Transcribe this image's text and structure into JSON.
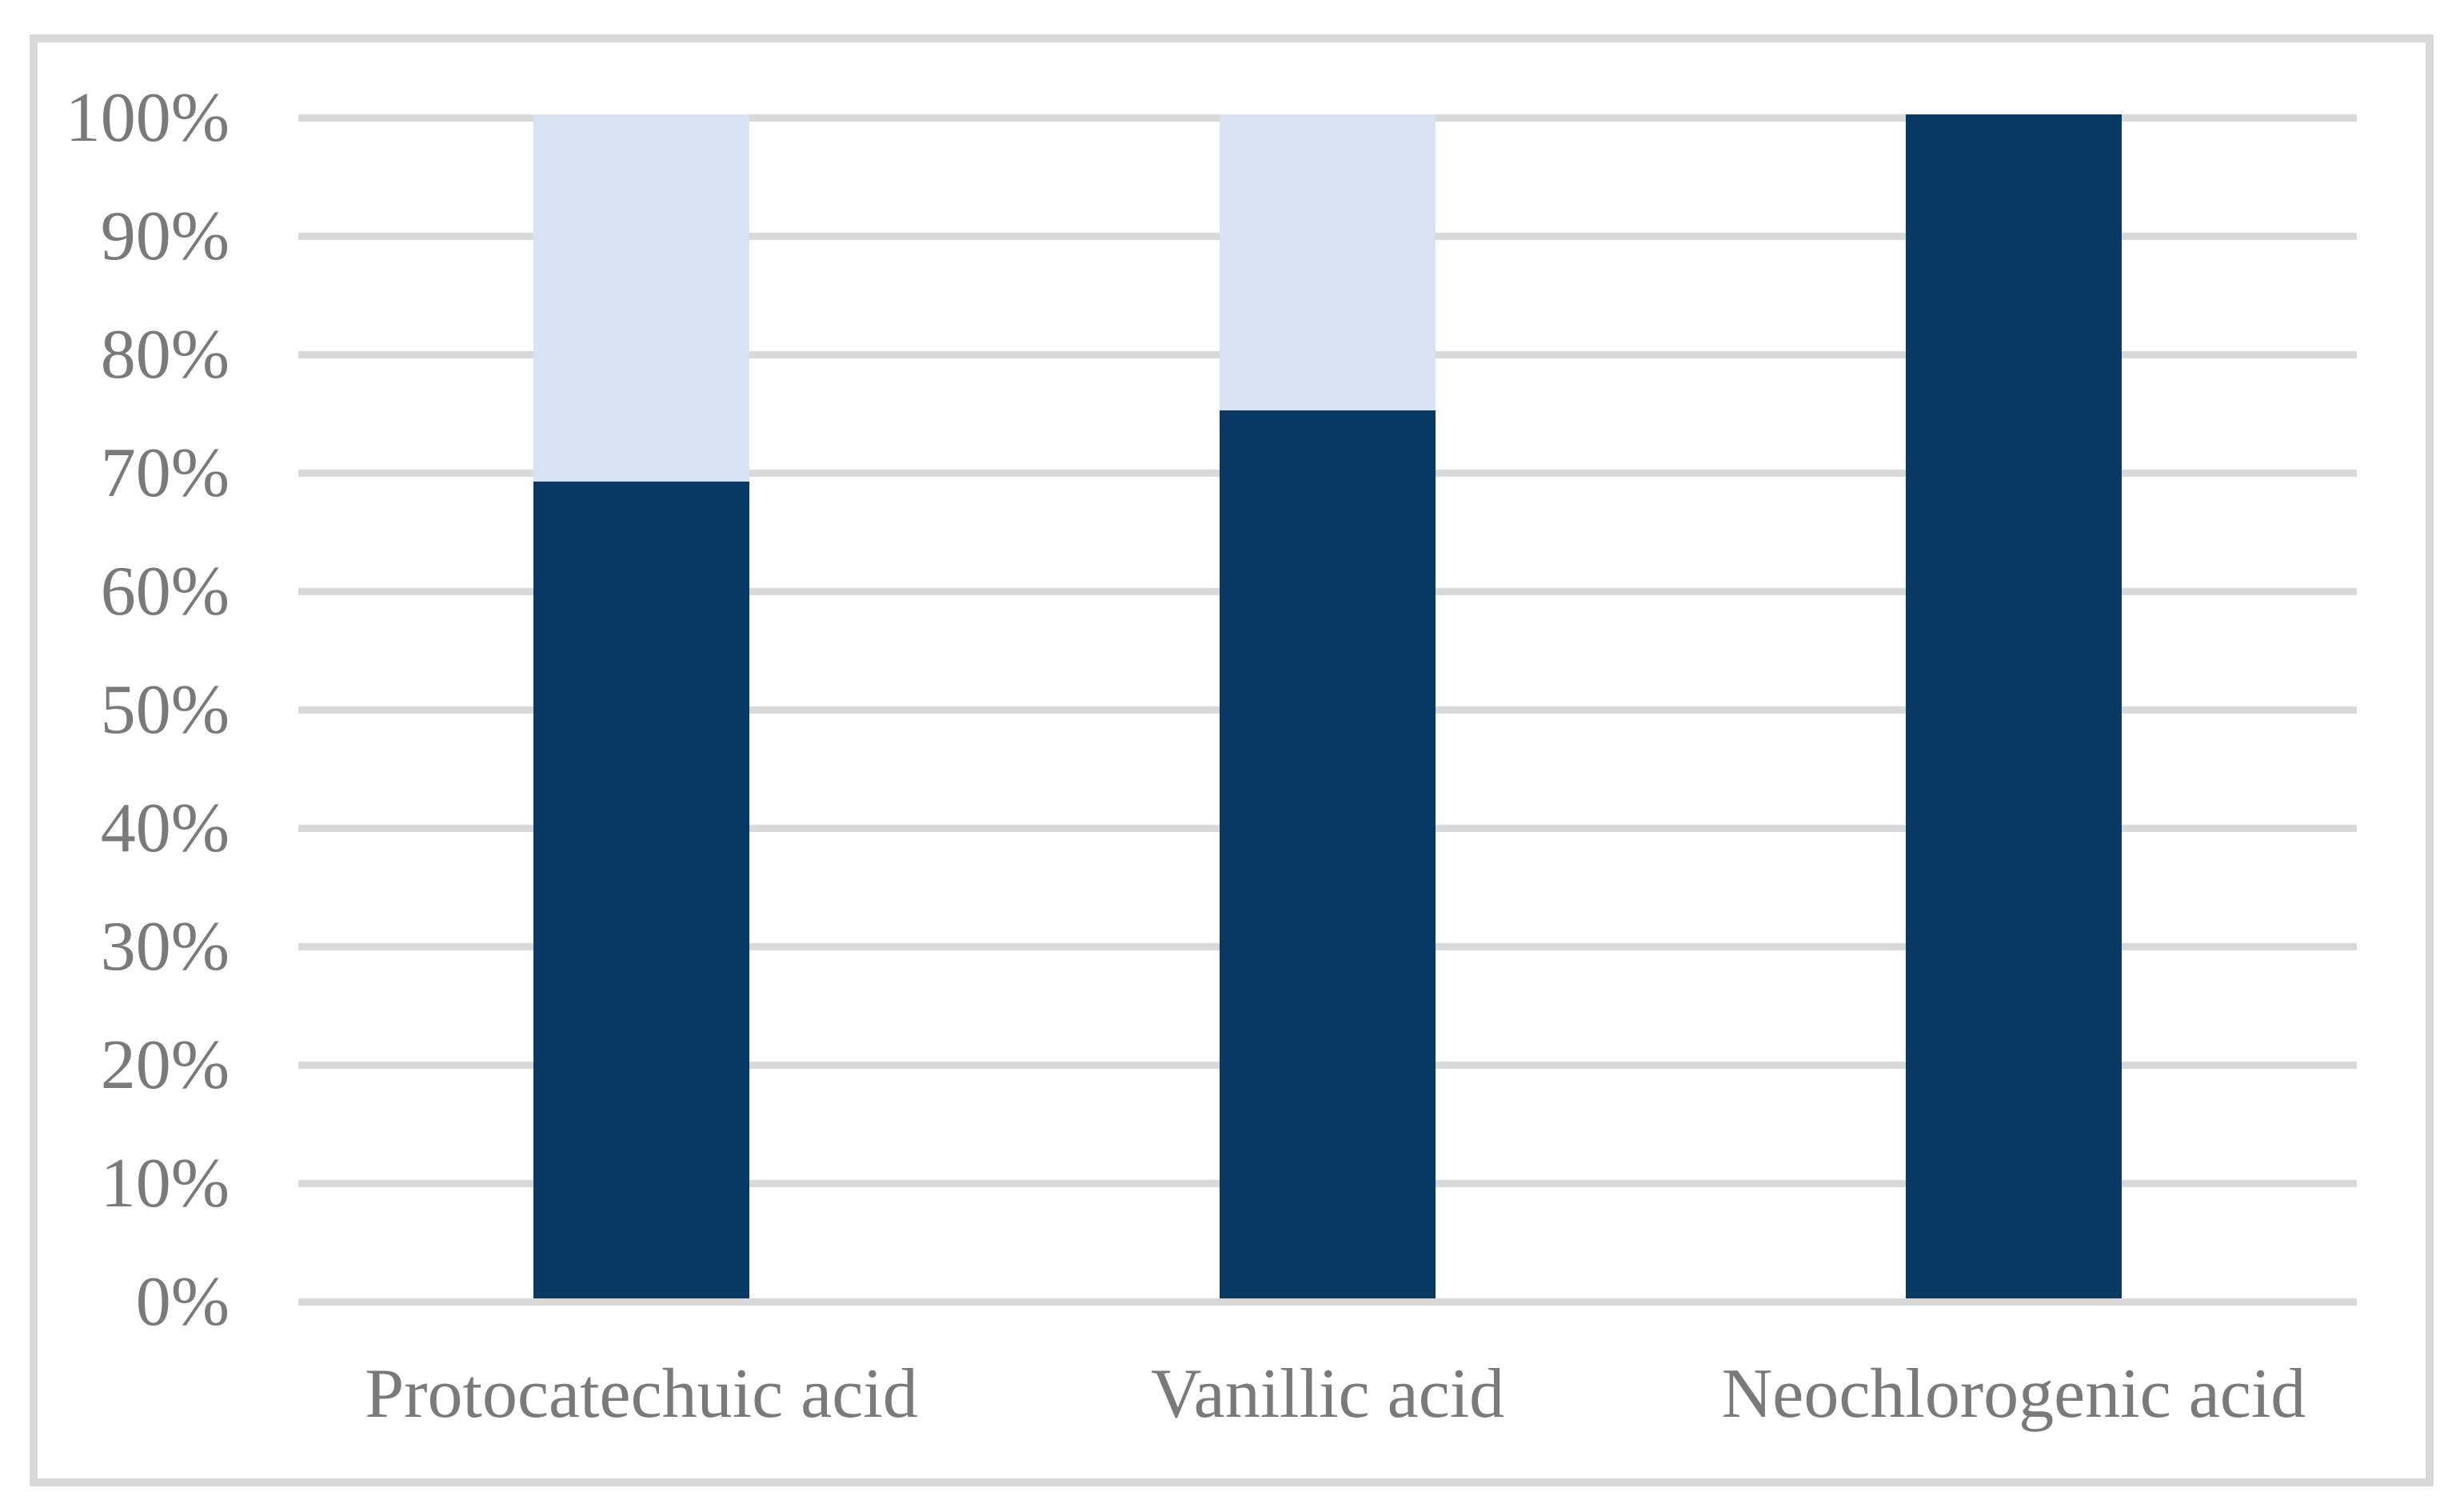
{
  "chart_data": {
    "type": "bar",
    "stacked": true,
    "title": "",
    "xlabel": "",
    "ylabel": "",
    "categories": [
      "Protocatechuic acid",
      "Vanillic acid",
      "Neochlorogenic acid"
    ],
    "series": [
      {
        "name": "bottom-segment-dark-navy",
        "color": "#0a3a63",
        "values": [
          69,
          75,
          100
        ]
      },
      {
        "name": "top-segment-light-blue",
        "color": "#d9e2f3",
        "values": [
          31,
          25,
          0
        ]
      }
    ],
    "ylim": [
      0,
      100
    ],
    "y_tick_step": 10,
    "y_tick_labels": [
      "0%",
      "10%",
      "20%",
      "30%",
      "40%",
      "50%",
      "60%",
      "70%",
      "80%",
      "90%",
      "100%"
    ],
    "grid": true,
    "legend": false
  },
  "styles": {
    "background_color": "#ffffff",
    "frame_border_color": "#d9d9d9",
    "gridline_color": "#d9d9d9",
    "axis_text_color": "#7a7a7a"
  }
}
